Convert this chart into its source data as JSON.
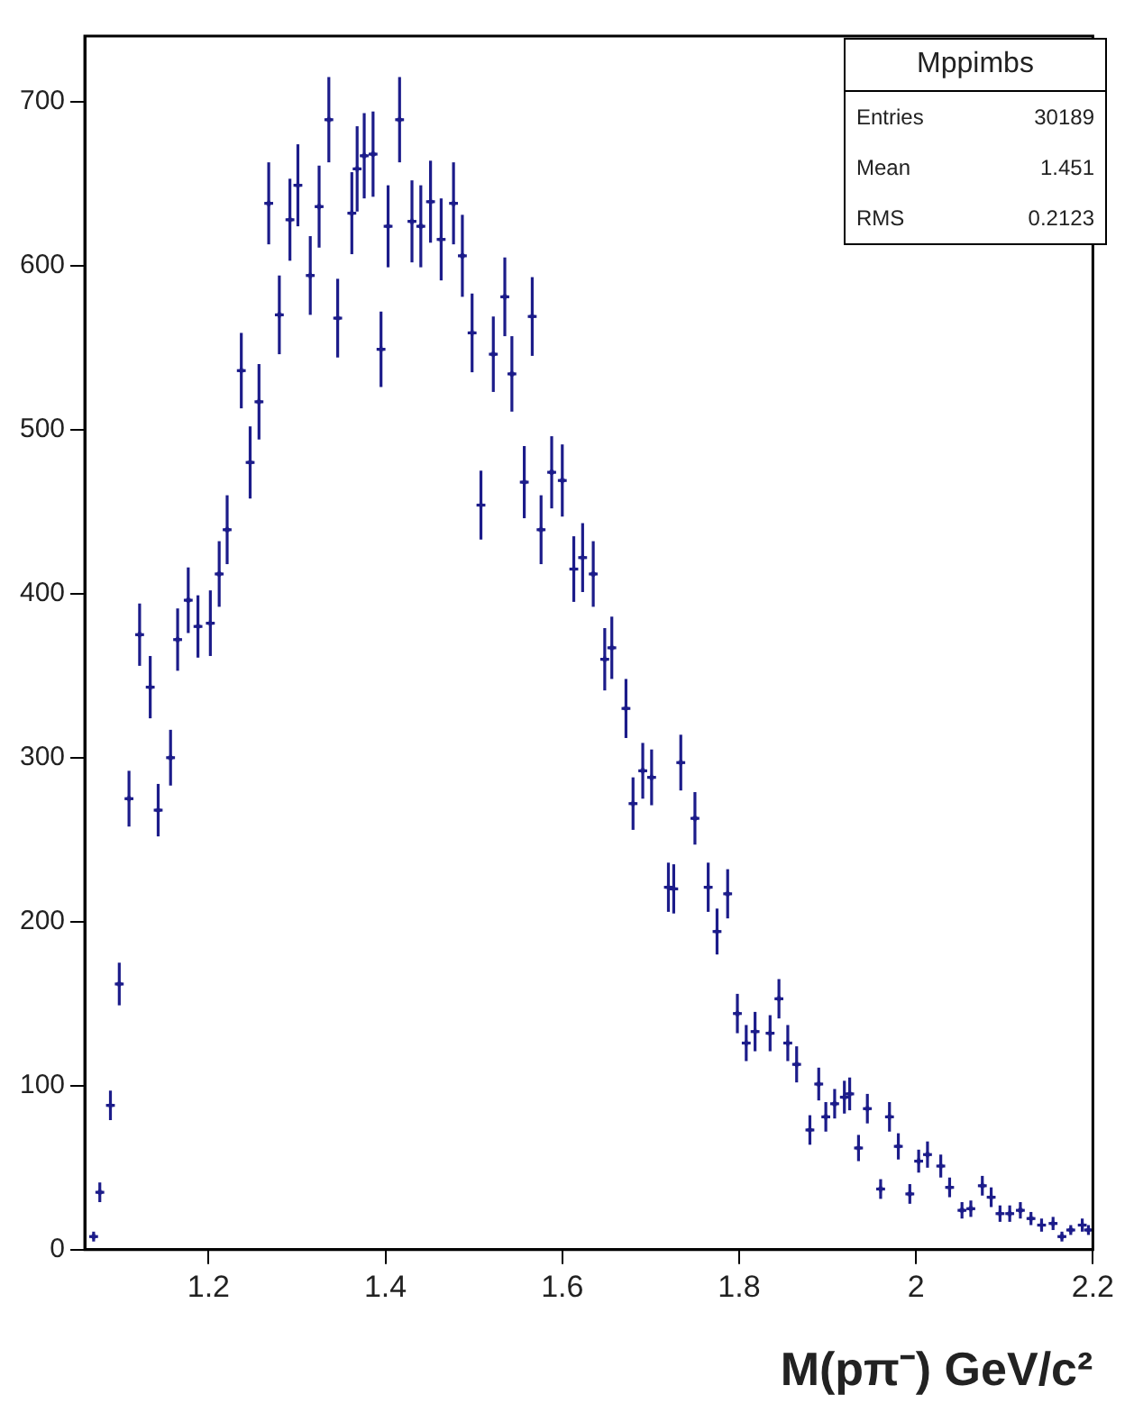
{
  "chart_data": {
    "type": "scatter",
    "xlabel": "M(pπ⁻) GeV/c²",
    "annotations": [
      "Mppimbs",
      "Entries",
      "30189",
      "Mean",
      "1.451",
      "RMS",
      "0.2123"
    ],
    "xlim": [
      1.06,
      2.2
    ],
    "xticks": [
      1.2,
      1.4,
      1.6,
      1.8,
      2,
      2.2
    ],
    "ylim": [
      0,
      740
    ],
    "yticks": [
      0,
      100,
      200,
      300,
      400,
      500,
      600,
      700
    ],
    "grid": false,
    "legend": false,
    "marker": "cross",
    "series": [
      {
        "color": "#1c1c8a",
        "x": [
          1.07,
          1.077,
          1.089,
          1.099,
          1.11,
          1.122,
          1.134,
          1.143,
          1.157,
          1.165,
          1.177,
          1.188,
          1.202,
          1.212,
          1.221,
          1.237,
          1.247,
          1.257,
          1.268,
          1.28,
          1.292,
          1.301,
          1.315,
          1.325,
          1.336,
          1.346,
          1.362,
          1.368,
          1.376,
          1.386,
          1.395,
          1.403,
          1.416,
          1.43,
          1.44,
          1.451,
          1.463,
          1.477,
          1.487,
          1.498,
          1.508,
          1.522,
          1.535,
          1.543,
          1.557,
          1.566,
          1.576,
          1.588,
          1.6,
          1.613,
          1.623,
          1.635,
          1.648,
          1.656,
          1.672,
          1.68,
          1.691,
          1.701,
          1.72,
          1.726,
          1.734,
          1.75,
          1.765,
          1.775,
          1.787,
          1.798,
          1.808,
          1.818,
          1.835,
          1.845,
          1.855,
          1.865,
          1.88,
          1.89,
          1.898,
          1.908,
          1.919,
          1.925,
          1.935,
          1.945,
          1.96,
          1.97,
          1.98,
          1.993,
          2.003,
          2.013,
          2.028,
          2.038,
          2.052,
          2.062,
          2.075,
          2.085,
          2.095,
          2.106,
          2.118,
          2.13,
          2.142,
          2.155,
          2.165,
          2.175,
          2.188,
          2.195
        ],
        "values": [
          8,
          35,
          88,
          162,
          275,
          375,
          343,
          268,
          300,
          372,
          396,
          380,
          382,
          412,
          439,
          536,
          480,
          517,
          638,
          570,
          628,
          649,
          594,
          636,
          689,
          568,
          632,
          659,
          667,
          668,
          549,
          624,
          689,
          627,
          624,
          639,
          616,
          638,
          606,
          559,
          454,
          546,
          581,
          534,
          468,
          569,
          439,
          474,
          469,
          415,
          422,
          412,
          360,
          367,
          330,
          272,
          292,
          288,
          221,
          220,
          297,
          263,
          221,
          194,
          217,
          144,
          126,
          133,
          132,
          153,
          126,
          113,
          73,
          101,
          81,
          89,
          93,
          95,
          62,
          86,
          37,
          81,
          63,
          34,
          54,
          58,
          51,
          38,
          24,
          25,
          39,
          32,
          22,
          22,
          24,
          19,
          15,
          16,
          8,
          12,
          15,
          12
        ],
        "errors": [
          3,
          6,
          9,
          13,
          17,
          19,
          19,
          16,
          17,
          19,
          20,
          19,
          20,
          20,
          21,
          23,
          22,
          23,
          25,
          24,
          25,
          25,
          24,
          25,
          26,
          24,
          25,
          26,
          26,
          26,
          23,
          25,
          26,
          25,
          25,
          25,
          25,
          25,
          25,
          24,
          21,
          23,
          24,
          23,
          22,
          24,
          21,
          22,
          22,
          20,
          21,
          20,
          19,
          19,
          18,
          16,
          17,
          17,
          15,
          15,
          17,
          16,
          15,
          14,
          15,
          12,
          11,
          12,
          11,
          12,
          11,
          11,
          9,
          10,
          9,
          9,
          10,
          10,
          8,
          9,
          6,
          9,
          8,
          6,
          7,
          8,
          7,
          6,
          5,
          5,
          6,
          6,
          5,
          5,
          5,
          4,
          4,
          4,
          3,
          3,
          4,
          3
        ],
        "xerrors": [
          0.005,
          0.005,
          0.005,
          0.005,
          0.005,
          0.005,
          0.005,
          0.005,
          0.005,
          0.005,
          0.005,
          0.005,
          0.005,
          0.005,
          0.005,
          0.005,
          0.005,
          0.005,
          0.005,
          0.005,
          0.005,
          0.005,
          0.005,
          0.005,
          0.005,
          0.005,
          0.005,
          0.005,
          0.005,
          0.005,
          0.005,
          0.005,
          0.005,
          0.005,
          0.005,
          0.005,
          0.005,
          0.005,
          0.005,
          0.005,
          0.005,
          0.005,
          0.005,
          0.005,
          0.005,
          0.005,
          0.005,
          0.005,
          0.005,
          0.005,
          0.005,
          0.005,
          0.005,
          0.005,
          0.005,
          0.005,
          0.005,
          0.005,
          0.005,
          0.005,
          0.005,
          0.005,
          0.005,
          0.005,
          0.005,
          0.005,
          0.005,
          0.005,
          0.005,
          0.005,
          0.005,
          0.005,
          0.005,
          0.005,
          0.005,
          0.005,
          0.005,
          0.005,
          0.005,
          0.005,
          0.005,
          0.005,
          0.005,
          0.005,
          0.005,
          0.005,
          0.005,
          0.005,
          0.005,
          0.005,
          0.005,
          0.005,
          0.005,
          0.005,
          0.005,
          0.005,
          0.005,
          0.005,
          0.005,
          0.005,
          0.005,
          0.005
        ]
      }
    ]
  }
}
